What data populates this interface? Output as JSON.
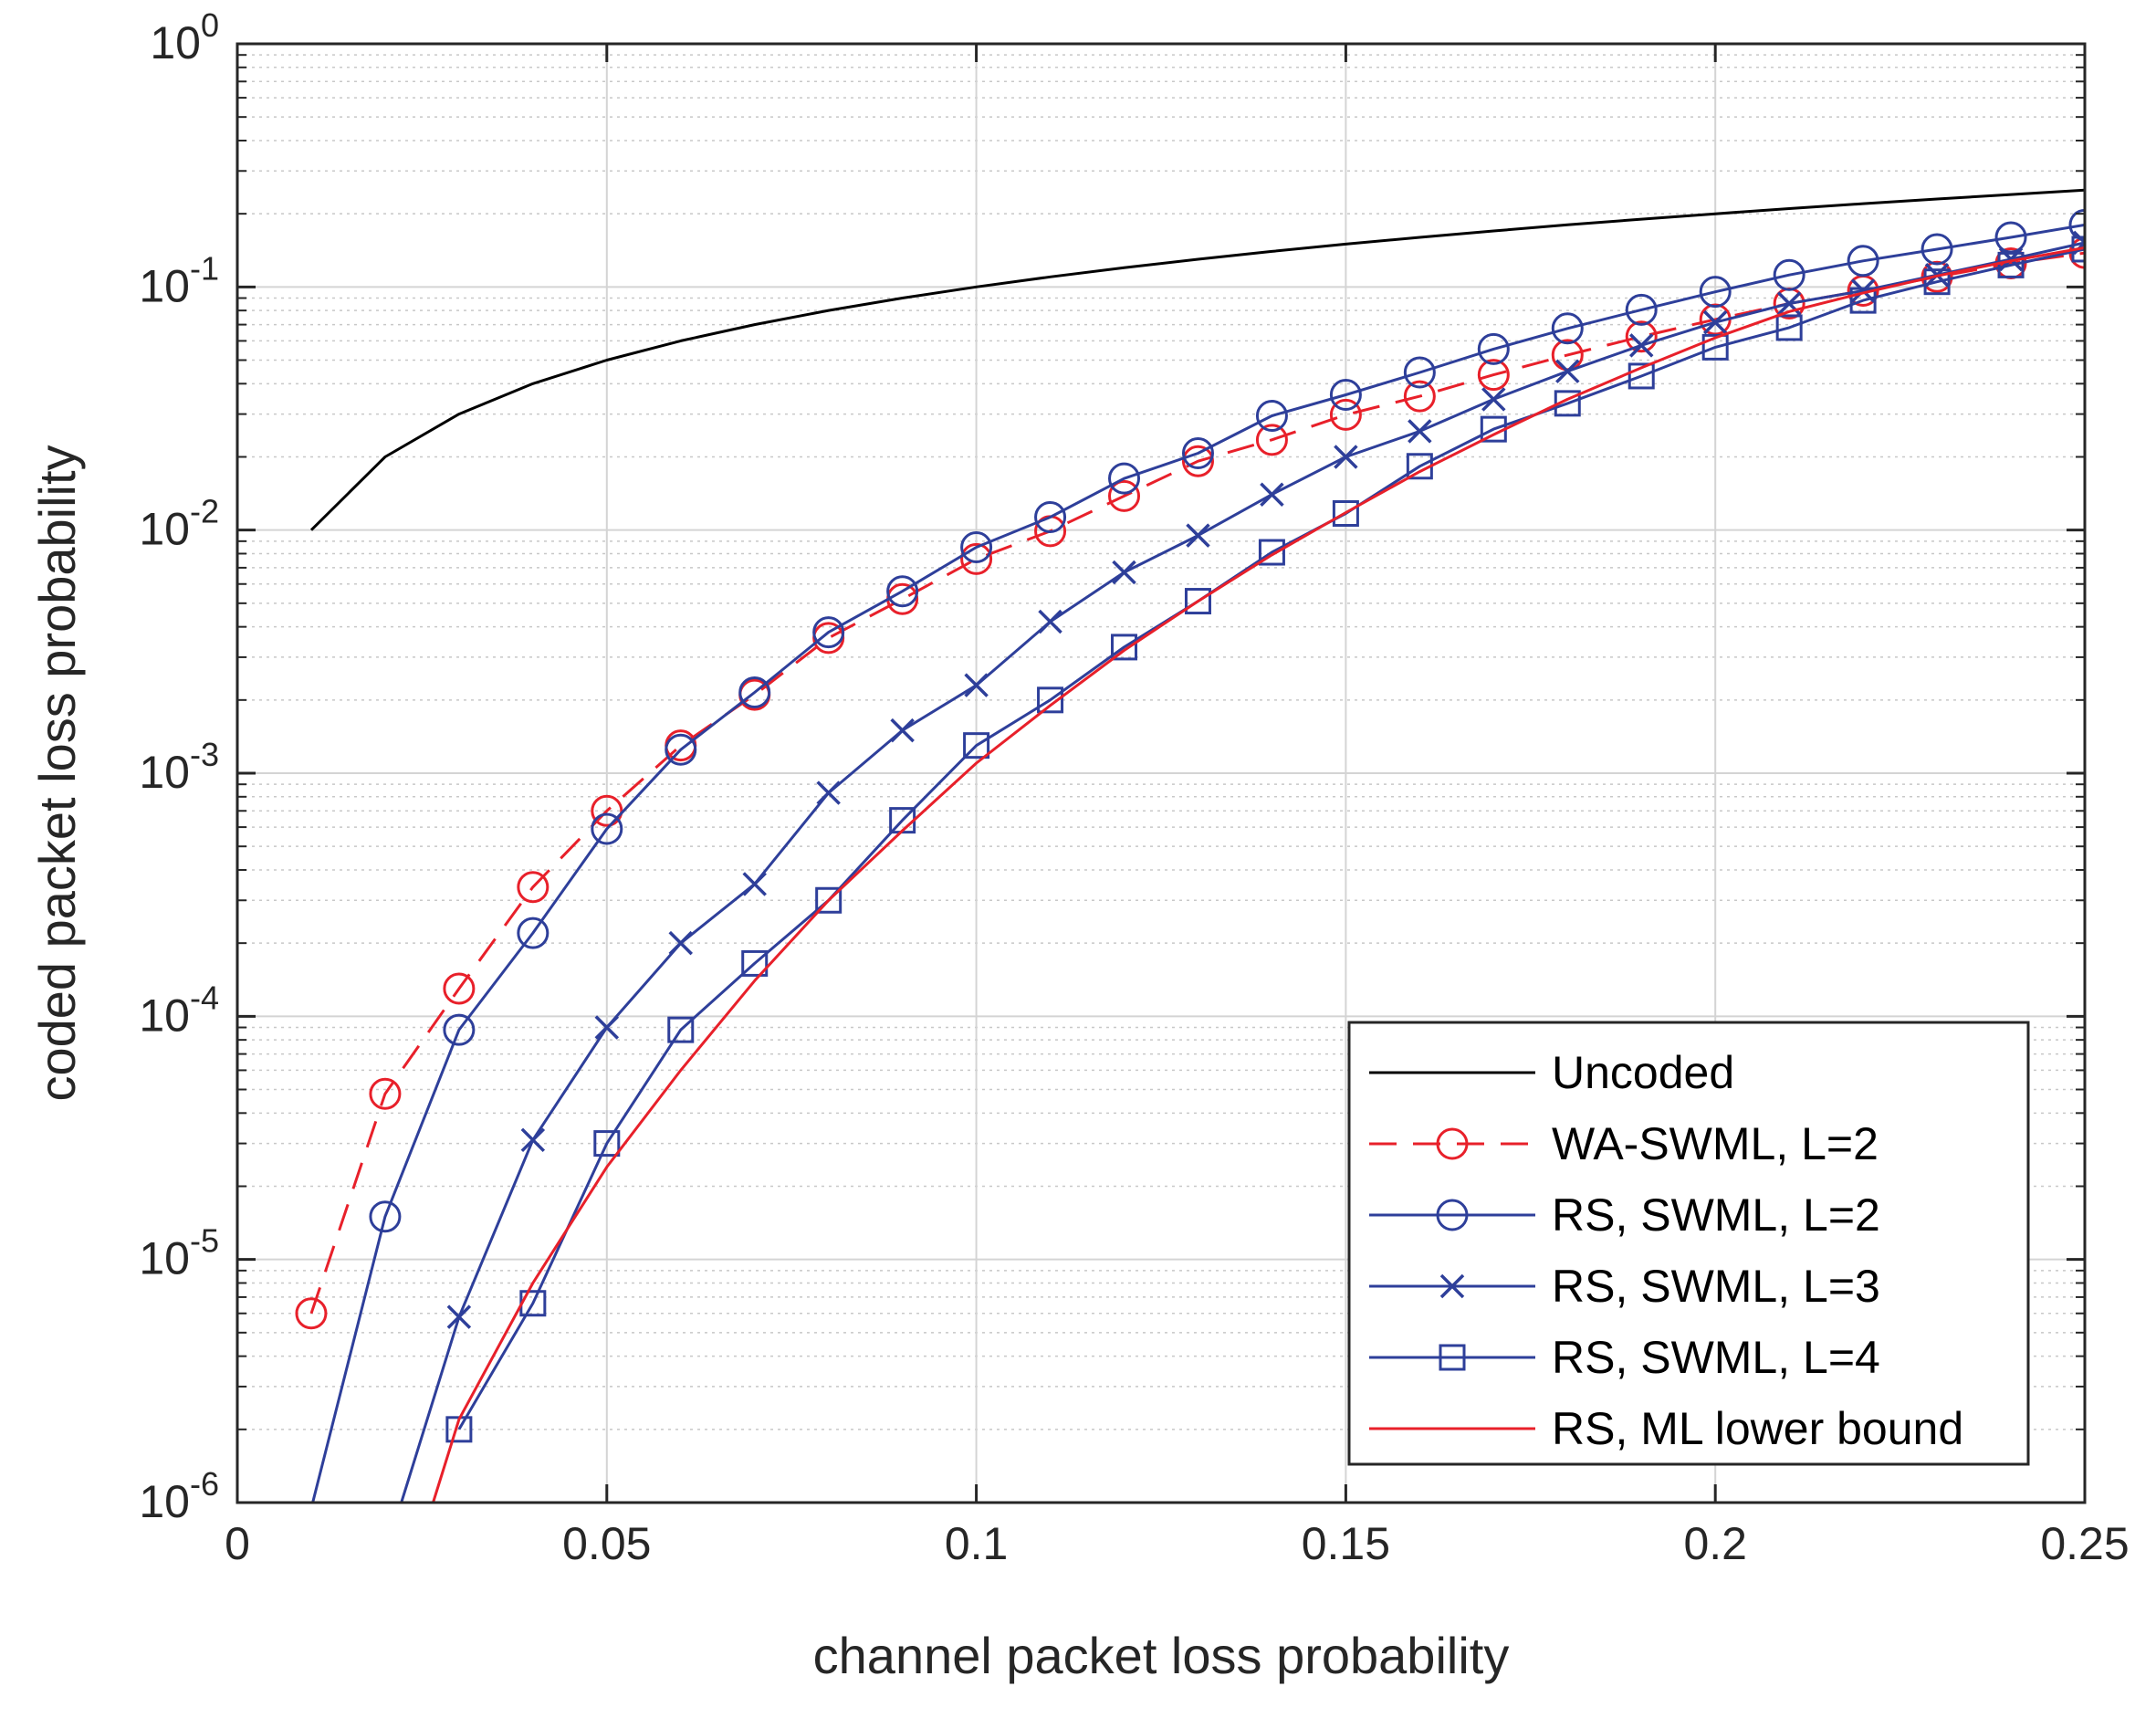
{
  "chart_data": {
    "type": "line",
    "title": "",
    "xlabel": "channel packet loss probability",
    "ylabel": "coded packet loss probability",
    "xlim": [
      0,
      0.25
    ],
    "ylim": [
      1e-06,
      1
    ],
    "yscale": "log",
    "grid": true,
    "minor_grid": true,
    "legend_position": "bottom-right",
    "x_ticks": [
      0,
      0.05,
      0.1,
      0.15,
      0.2,
      0.25
    ],
    "x_tick_labels": [
      "0",
      "0.05",
      "0.1",
      "0.15",
      "0.2",
      "0.25"
    ],
    "y_ticks": [
      {
        "value": 1e-06,
        "base": "10",
        "exp": "-6"
      },
      {
        "value": 1e-05,
        "base": "10",
        "exp": "-5"
      },
      {
        "value": 0.0001,
        "base": "10",
        "exp": "-4"
      },
      {
        "value": 0.001,
        "base": "10",
        "exp": "-3"
      },
      {
        "value": 0.01,
        "base": "10",
        "exp": "-2"
      },
      {
        "value": 0.1,
        "base": "10",
        "exp": "-1"
      },
      {
        "value": 1,
        "base": "10",
        "exp": "0"
      }
    ],
    "series": [
      {
        "name": "Uncoded",
        "color": "#000000",
        "dash": "solid",
        "marker": "none",
        "x": [
          0.01,
          0.02,
          0.03,
          0.04,
          0.05,
          0.06,
          0.07,
          0.08,
          0.09,
          0.1,
          0.11,
          0.12,
          0.13,
          0.14,
          0.15,
          0.16,
          0.17,
          0.18,
          0.19,
          0.2,
          0.21,
          0.22,
          0.23,
          0.24,
          0.25
        ],
        "y": [
          0.01,
          0.02,
          0.03,
          0.04,
          0.05,
          0.06,
          0.07,
          0.08,
          0.09,
          0.1,
          0.11,
          0.12,
          0.13,
          0.14,
          0.15,
          0.16,
          0.17,
          0.18,
          0.19,
          0.2,
          0.21,
          0.22,
          0.23,
          0.24,
          0.25
        ]
      },
      {
        "name": "WA-SWML, L=2",
        "color": "#e8202a",
        "dash": "dashed",
        "marker": "circle",
        "x": [
          0.01,
          0.02,
          0.03,
          0.04,
          0.05,
          0.06,
          0.07,
          0.08,
          0.09,
          0.1,
          0.11,
          0.12,
          0.13,
          0.14,
          0.15,
          0.16,
          0.17,
          0.18,
          0.19,
          0.2,
          0.21,
          0.22,
          0.23,
          0.24,
          0.25
        ],
        "y": [
          6e-06,
          4.8e-05,
          0.00013,
          0.00034,
          0.0007,
          0.0013,
          0.0021,
          0.0036,
          0.0052,
          0.0076,
          0.0099,
          0.0138,
          0.0192,
          0.0235,
          0.0298,
          0.0355,
          0.0435,
          0.0525,
          0.0625,
          0.0735,
          0.0855,
          0.0965,
          0.11,
          0.125,
          0.138
        ]
      },
      {
        "name": "RS, SWML, L=2",
        "color": "#2e3f9a",
        "dash": "solid",
        "marker": "circle",
        "line_start": [
          0.0102,
          1e-06
        ],
        "x": [
          0.02,
          0.03,
          0.04,
          0.05,
          0.06,
          0.07,
          0.08,
          0.09,
          0.1,
          0.11,
          0.12,
          0.13,
          0.14,
          0.15,
          0.16,
          0.17,
          0.18,
          0.19,
          0.2,
          0.21,
          0.22,
          0.23,
          0.24,
          0.25
        ],
        "y": [
          1.5e-05,
          8.8e-05,
          0.00022,
          0.00059,
          0.00125,
          0.00215,
          0.0038,
          0.0056,
          0.0085,
          0.0113,
          0.0163,
          0.0207,
          0.0295,
          0.036,
          0.0445,
          0.0555,
          0.0675,
          0.0805,
          0.0955,
          0.112,
          0.128,
          0.143,
          0.16,
          0.18
        ]
      },
      {
        "name": "RS, SWML, L=3",
        "color": "#2e3f9a",
        "dash": "solid",
        "marker": "x",
        "line_start": [
          0.0222,
          1e-06
        ],
        "x": [
          0.03,
          0.04,
          0.05,
          0.06,
          0.07,
          0.08,
          0.09,
          0.1,
          0.11,
          0.12,
          0.13,
          0.14,
          0.15,
          0.16,
          0.17,
          0.18,
          0.19,
          0.2,
          0.21,
          0.22,
          0.23,
          0.24,
          0.25
        ],
        "y": [
          5.8e-06,
          3.1e-05,
          9e-05,
          0.0002,
          0.00035,
          0.00083,
          0.0015,
          0.0023,
          0.0042,
          0.0067,
          0.0095,
          0.014,
          0.02,
          0.0255,
          0.0345,
          0.045,
          0.0575,
          0.0715,
          0.0855,
          0.0965,
          0.112,
          0.13,
          0.152
        ]
      },
      {
        "name": "RS, SWML, L=4",
        "color": "#2e3f9a",
        "dash": "solid",
        "marker": "square",
        "x": [
          0.03,
          0.04,
          0.05,
          0.06,
          0.07,
          0.08,
          0.09,
          0.1,
          0.11,
          0.12,
          0.13,
          0.14,
          0.15,
          0.16,
          0.17,
          0.18,
          0.19,
          0.2,
          0.21,
          0.22,
          0.23,
          0.24,
          0.25
        ],
        "y": [
          2e-06,
          6.6e-06,
          3e-05,
          8.8e-05,
          0.000165,
          0.0003,
          0.00064,
          0.0013,
          0.002,
          0.0033,
          0.0051,
          0.0081,
          0.0117,
          0.0183,
          0.026,
          0.0332,
          0.043,
          0.0565,
          0.068,
          0.088,
          0.105,
          0.123,
          0.143
        ]
      },
      {
        "name": "RS, ML lower bound",
        "color": "#e8202a",
        "dash": "solid",
        "marker": "none",
        "x": [
          0.0265,
          0.03,
          0.04,
          0.05,
          0.06,
          0.07,
          0.08,
          0.09,
          0.1,
          0.11,
          0.12,
          0.13,
          0.14,
          0.15,
          0.16,
          0.17,
          0.18,
          0.19,
          0.2,
          0.21,
          0.22,
          0.23,
          0.24,
          0.25
        ],
        "y": [
          1e-06,
          2.2e-06,
          8e-06,
          2.4e-05,
          6e-05,
          0.00014,
          0.0003,
          0.00058,
          0.0011,
          0.0019,
          0.0032,
          0.0051,
          0.0079,
          0.0118,
          0.0174,
          0.0247,
          0.0345,
          0.0465,
          0.0618,
          0.0792,
          0.0945,
          0.111,
          0.128,
          0.145
        ]
      }
    ]
  }
}
